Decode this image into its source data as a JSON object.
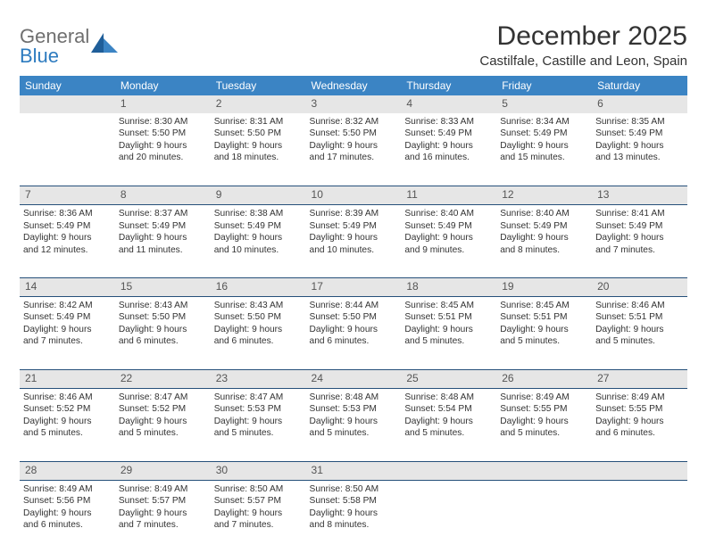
{
  "logo": {
    "general": "General",
    "blue": "Blue"
  },
  "title": "December 2025",
  "location": "Castilfale, Castille and Leon, Spain",
  "colors": {
    "header_bg": "#3b84c4",
    "header_text": "#ffffff",
    "daynum_bg": "#e6e6e6",
    "rule": "#26507a",
    "logo_blue": "#2d7bbf",
    "logo_gray": "#6f6f6f"
  },
  "days_of_week": [
    "Sunday",
    "Monday",
    "Tuesday",
    "Wednesday",
    "Thursday",
    "Friday",
    "Saturday"
  ],
  "weeks": [
    {
      "nums": [
        "",
        "1",
        "2",
        "3",
        "4",
        "5",
        "6"
      ],
      "cells": [
        null,
        {
          "sunrise": "Sunrise: 8:30 AM",
          "sunset": "Sunset: 5:50 PM",
          "dl1": "Daylight: 9 hours",
          "dl2": "and 20 minutes."
        },
        {
          "sunrise": "Sunrise: 8:31 AM",
          "sunset": "Sunset: 5:50 PM",
          "dl1": "Daylight: 9 hours",
          "dl2": "and 18 minutes."
        },
        {
          "sunrise": "Sunrise: 8:32 AM",
          "sunset": "Sunset: 5:50 PM",
          "dl1": "Daylight: 9 hours",
          "dl2": "and 17 minutes."
        },
        {
          "sunrise": "Sunrise: 8:33 AM",
          "sunset": "Sunset: 5:49 PM",
          "dl1": "Daylight: 9 hours",
          "dl2": "and 16 minutes."
        },
        {
          "sunrise": "Sunrise: 8:34 AM",
          "sunset": "Sunset: 5:49 PM",
          "dl1": "Daylight: 9 hours",
          "dl2": "and 15 minutes."
        },
        {
          "sunrise": "Sunrise: 8:35 AM",
          "sunset": "Sunset: 5:49 PM",
          "dl1": "Daylight: 9 hours",
          "dl2": "and 13 minutes."
        }
      ]
    },
    {
      "nums": [
        "7",
        "8",
        "9",
        "10",
        "11",
        "12",
        "13"
      ],
      "cells": [
        {
          "sunrise": "Sunrise: 8:36 AM",
          "sunset": "Sunset: 5:49 PM",
          "dl1": "Daylight: 9 hours",
          "dl2": "and 12 minutes."
        },
        {
          "sunrise": "Sunrise: 8:37 AM",
          "sunset": "Sunset: 5:49 PM",
          "dl1": "Daylight: 9 hours",
          "dl2": "and 11 minutes."
        },
        {
          "sunrise": "Sunrise: 8:38 AM",
          "sunset": "Sunset: 5:49 PM",
          "dl1": "Daylight: 9 hours",
          "dl2": "and 10 minutes."
        },
        {
          "sunrise": "Sunrise: 8:39 AM",
          "sunset": "Sunset: 5:49 PM",
          "dl1": "Daylight: 9 hours",
          "dl2": "and 10 minutes."
        },
        {
          "sunrise": "Sunrise: 8:40 AM",
          "sunset": "Sunset: 5:49 PM",
          "dl1": "Daylight: 9 hours",
          "dl2": "and 9 minutes."
        },
        {
          "sunrise": "Sunrise: 8:40 AM",
          "sunset": "Sunset: 5:49 PM",
          "dl1": "Daylight: 9 hours",
          "dl2": "and 8 minutes."
        },
        {
          "sunrise": "Sunrise: 8:41 AM",
          "sunset": "Sunset: 5:49 PM",
          "dl1": "Daylight: 9 hours",
          "dl2": "and 7 minutes."
        }
      ]
    },
    {
      "nums": [
        "14",
        "15",
        "16",
        "17",
        "18",
        "19",
        "20"
      ],
      "cells": [
        {
          "sunrise": "Sunrise: 8:42 AM",
          "sunset": "Sunset: 5:49 PM",
          "dl1": "Daylight: 9 hours",
          "dl2": "and 7 minutes."
        },
        {
          "sunrise": "Sunrise: 8:43 AM",
          "sunset": "Sunset: 5:50 PM",
          "dl1": "Daylight: 9 hours",
          "dl2": "and 6 minutes."
        },
        {
          "sunrise": "Sunrise: 8:43 AM",
          "sunset": "Sunset: 5:50 PM",
          "dl1": "Daylight: 9 hours",
          "dl2": "and 6 minutes."
        },
        {
          "sunrise": "Sunrise: 8:44 AM",
          "sunset": "Sunset: 5:50 PM",
          "dl1": "Daylight: 9 hours",
          "dl2": "and 6 minutes."
        },
        {
          "sunrise": "Sunrise: 8:45 AM",
          "sunset": "Sunset: 5:51 PM",
          "dl1": "Daylight: 9 hours",
          "dl2": "and 5 minutes."
        },
        {
          "sunrise": "Sunrise: 8:45 AM",
          "sunset": "Sunset: 5:51 PM",
          "dl1": "Daylight: 9 hours",
          "dl2": "and 5 minutes."
        },
        {
          "sunrise": "Sunrise: 8:46 AM",
          "sunset": "Sunset: 5:51 PM",
          "dl1": "Daylight: 9 hours",
          "dl2": "and 5 minutes."
        }
      ]
    },
    {
      "nums": [
        "21",
        "22",
        "23",
        "24",
        "25",
        "26",
        "27"
      ],
      "cells": [
        {
          "sunrise": "Sunrise: 8:46 AM",
          "sunset": "Sunset: 5:52 PM",
          "dl1": "Daylight: 9 hours",
          "dl2": "and 5 minutes."
        },
        {
          "sunrise": "Sunrise: 8:47 AM",
          "sunset": "Sunset: 5:52 PM",
          "dl1": "Daylight: 9 hours",
          "dl2": "and 5 minutes."
        },
        {
          "sunrise": "Sunrise: 8:47 AM",
          "sunset": "Sunset: 5:53 PM",
          "dl1": "Daylight: 9 hours",
          "dl2": "and 5 minutes."
        },
        {
          "sunrise": "Sunrise: 8:48 AM",
          "sunset": "Sunset: 5:53 PM",
          "dl1": "Daylight: 9 hours",
          "dl2": "and 5 minutes."
        },
        {
          "sunrise": "Sunrise: 8:48 AM",
          "sunset": "Sunset: 5:54 PM",
          "dl1": "Daylight: 9 hours",
          "dl2": "and 5 minutes."
        },
        {
          "sunrise": "Sunrise: 8:49 AM",
          "sunset": "Sunset: 5:55 PM",
          "dl1": "Daylight: 9 hours",
          "dl2": "and 5 minutes."
        },
        {
          "sunrise": "Sunrise: 8:49 AM",
          "sunset": "Sunset: 5:55 PM",
          "dl1": "Daylight: 9 hours",
          "dl2": "and 6 minutes."
        }
      ]
    },
    {
      "nums": [
        "28",
        "29",
        "30",
        "31",
        "",
        "",
        ""
      ],
      "cells": [
        {
          "sunrise": "Sunrise: 8:49 AM",
          "sunset": "Sunset: 5:56 PM",
          "dl1": "Daylight: 9 hours",
          "dl2": "and 6 minutes."
        },
        {
          "sunrise": "Sunrise: 8:49 AM",
          "sunset": "Sunset: 5:57 PM",
          "dl1": "Daylight: 9 hours",
          "dl2": "and 7 minutes."
        },
        {
          "sunrise": "Sunrise: 8:50 AM",
          "sunset": "Sunset: 5:57 PM",
          "dl1": "Daylight: 9 hours",
          "dl2": "and 7 minutes."
        },
        {
          "sunrise": "Sunrise: 8:50 AM",
          "sunset": "Sunset: 5:58 PM",
          "dl1": "Daylight: 9 hours",
          "dl2": "and 8 minutes."
        },
        null,
        null,
        null
      ]
    }
  ]
}
